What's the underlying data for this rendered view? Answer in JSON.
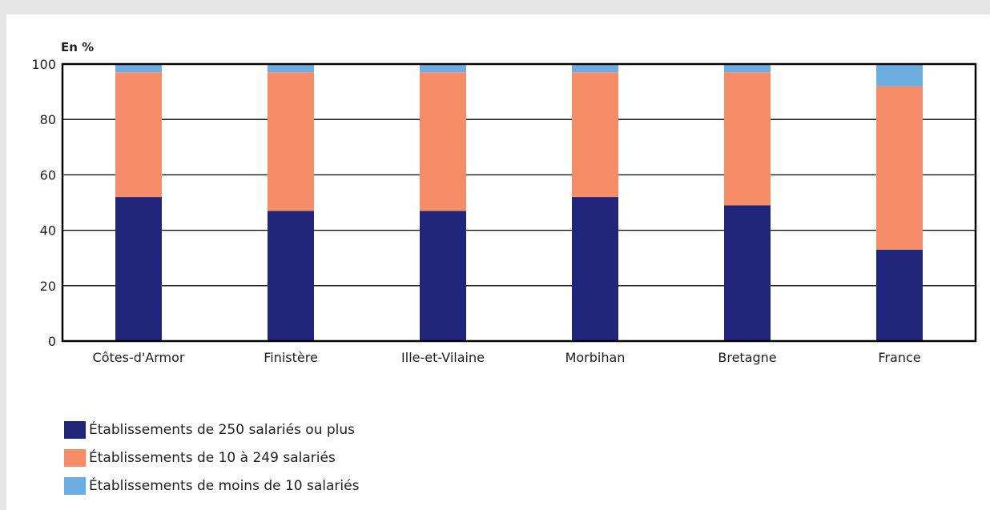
{
  "chart_data": {
    "type": "bar",
    "stacked": true,
    "unit_label": "En %",
    "categories": [
      "Côtes-d'Armor",
      "Finistère",
      "Ille-et-Vilaine",
      "Morbihan",
      "Bretagne",
      "France"
    ],
    "series": [
      {
        "name": "Établissements de 250 salariés ou plus",
        "color": "#21257a",
        "values": [
          52,
          47,
          47,
          52,
          49,
          33
        ]
      },
      {
        "name": "Établissements de 10 à 249 salariés",
        "color": "#f68d68",
        "values": [
          45,
          50,
          50,
          45,
          48,
          59
        ]
      },
      {
        "name": "Établissements de moins de 10 salariés",
        "color": "#6caee2",
        "values": [
          3,
          3,
          3,
          3,
          3,
          8
        ]
      }
    ],
    "ylim": [
      0,
      100
    ],
    "yticks": [
      0,
      20,
      40,
      60,
      80,
      100
    ],
    "grid": true,
    "legend_position": "bottom-left"
  }
}
